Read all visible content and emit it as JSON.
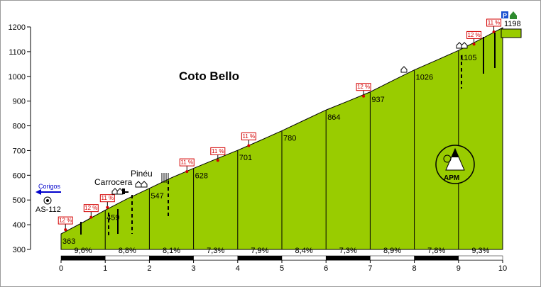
{
  "chart_data": {
    "type": "area",
    "title": "Coto Bello",
    "xlabel": "",
    "ylabel": "",
    "xlim": [
      0,
      10
    ],
    "ylim": [
      300,
      1200
    ],
    "x_ticks": [
      "0",
      "1",
      "2",
      "3",
      "4",
      "5",
      "6",
      "7",
      "8",
      "9",
      "10"
    ],
    "y_ticks": [
      "300",
      "400",
      "500",
      "600",
      "700",
      "800",
      "900",
      "1000",
      "1100",
      "1200"
    ],
    "grid": false,
    "fill_color": "#99cc00",
    "profile": [
      {
        "x": 0,
        "y": 363
      },
      {
        "x": 0.5,
        "y": 410
      },
      {
        "x": 1,
        "y": 459
      },
      {
        "x": 1.5,
        "y": 505
      },
      {
        "x": 2,
        "y": 547
      },
      {
        "x": 2.5,
        "y": 590
      },
      {
        "x": 3,
        "y": 628
      },
      {
        "x": 3.5,
        "y": 665
      },
      {
        "x": 4,
        "y": 701
      },
      {
        "x": 4.5,
        "y": 740
      },
      {
        "x": 5,
        "y": 780
      },
      {
        "x": 5.5,
        "y": 822
      },
      {
        "x": 6,
        "y": 864
      },
      {
        "x": 6.5,
        "y": 900
      },
      {
        "x": 7,
        "y": 937
      },
      {
        "x": 7.5,
        "y": 982
      },
      {
        "x": 8,
        "y": 1026
      },
      {
        "x": 8.5,
        "y": 1065
      },
      {
        "x": 9,
        "y": 1105
      },
      {
        "x": 9.5,
        "y": 1150
      },
      {
        "x": 10,
        "y": 1197
      }
    ],
    "km_altitudes": [
      {
        "x": 0,
        "label": "363"
      },
      {
        "x": 1,
        "label": "459"
      },
      {
        "x": 2,
        "label": "547"
      },
      {
        "x": 3,
        "label": "628"
      },
      {
        "x": 4,
        "label": "701"
      },
      {
        "x": 5,
        "label": "780"
      },
      {
        "x": 6,
        "label": "864"
      },
      {
        "x": 7,
        "label": "937"
      },
      {
        "x": 8,
        "label": "1026"
      },
      {
        "x": 9,
        "label": "1105"
      },
      {
        "x": 10,
        "label": "1197"
      }
    ],
    "segment_slopes": [
      "9,6%",
      "8,8%",
      "8,1%",
      "7,3%",
      "7,9%",
      "8,4%",
      "7,3%",
      "8,9%",
      "7,8%",
      "9,3%"
    ],
    "max_slope_badges": [
      {
        "x": 0.1,
        "y": 380,
        "label": "12 %"
      },
      {
        "x": 0.68,
        "y": 430,
        "label": "12 %"
      },
      {
        "x": 1.05,
        "y": 470,
        "label": "11 %"
      },
      {
        "x": 2.85,
        "y": 615,
        "label": "11 %"
      },
      {
        "x": 3.55,
        "y": 660,
        "label": "11 %"
      },
      {
        "x": 4.25,
        "y": 720,
        "label": "11 %"
      },
      {
        "x": 6.85,
        "y": 920,
        "label": "12 %"
      },
      {
        "x": 9.35,
        "y": 1130,
        "label": "12 %"
      },
      {
        "x": 9.8,
        "y": 1180,
        "label": "11 %"
      }
    ],
    "summit_altitude": "1198",
    "places": [
      {
        "name": "Carrocera"
      },
      {
        "name": "Pinéu"
      }
    ],
    "start_road": {
      "direction": "Corigos",
      "road": "AS-112"
    },
    "logo": "APM"
  }
}
